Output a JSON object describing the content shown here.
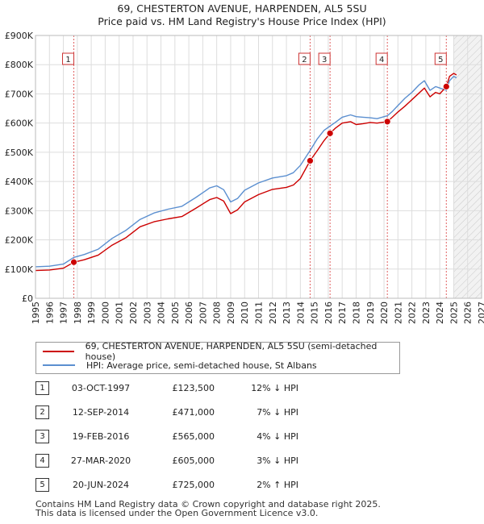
{
  "title_line1": "69, CHESTERTON AVENUE, HARPENDEN, AL5 5SU",
  "title_line2": "Price paid vs. HM Land Registry's House Price Index (HPI)",
  "legend": [
    {
      "label": "69, CHESTERTON AVENUE, HARPENDEN, AL5 5SU (semi-detached house)",
      "color": "#cc0000"
    },
    {
      "label": "HPI: Average price, semi-detached house, St Albans",
      "color": "#5b8fd0"
    }
  ],
  "transactions": [
    {
      "num": "1",
      "date": "03-OCT-1997",
      "price": "£123,500",
      "hpi": "12% ↓ HPI"
    },
    {
      "num": "2",
      "date": "12-SEP-2014",
      "price": "£471,000",
      "hpi": "7% ↓ HPI"
    },
    {
      "num": "3",
      "date": "19-FEB-2016",
      "price": "£565,000",
      "hpi": "4% ↓ HPI"
    },
    {
      "num": "4",
      "date": "27-MAR-2020",
      "price": "£605,000",
      "hpi": "3% ↓ HPI"
    },
    {
      "num": "5",
      "date": "20-JUN-2024",
      "price": "£725,000",
      "hpi": "2% ↑ HPI"
    }
  ],
  "footer_line1": "Contains HM Land Registry data © Crown copyright and database right 2025.",
  "footer_line2": "This data is licensed under the Open Government Licence v3.0.",
  "chart_data": {
    "type": "line",
    "title": "69, CHESTERTON AVENUE, HARPENDEN, AL5 5SU",
    "subtitle": "Price paid vs. HM Land Registry's House Price Index (HPI)",
    "xlim": [
      1995,
      2027
    ],
    "ylim": [
      0,
      900000
    ],
    "x_ticks": [
      1995,
      1996,
      1997,
      1998,
      1999,
      2000,
      2001,
      2002,
      2003,
      2004,
      2005,
      2006,
      2007,
      2008,
      2009,
      2010,
      2011,
      2012,
      2013,
      2014,
      2015,
      2016,
      2017,
      2018,
      2019,
      2020,
      2021,
      2022,
      2023,
      2024,
      2025,
      2026,
      2027
    ],
    "y_ticks": [
      {
        "value": 0,
        "label": "£0"
      },
      {
        "value": 100000,
        "label": "£100K"
      },
      {
        "value": 200000,
        "label": "£200K"
      },
      {
        "value": 300000,
        "label": "£300K"
      },
      {
        "value": 400000,
        "label": "£400K"
      },
      {
        "value": 500000,
        "label": "£500K"
      },
      {
        "value": 600000,
        "label": "£600K"
      },
      {
        "value": 700000,
        "label": "£700K"
      },
      {
        "value": 800000,
        "label": "£800K"
      },
      {
        "value": 900000,
        "label": "£900K"
      }
    ],
    "grid": true,
    "legend_position": "below",
    "shaded_future_from": 2025,
    "series": [
      {
        "name": "69, CHESTERTON AVENUE, HARPENDEN, AL5 5SU (semi-detached house)",
        "color": "#cc0000",
        "x": [
          1995.0,
          1996.0,
          1997.0,
          1997.75,
          1998.5,
          1999.5,
          2000.5,
          2001.5,
          2002.5,
          2003.5,
          2004.5,
          2005.5,
          2006.5,
          2007.5,
          2008.0,
          2008.5,
          2009.0,
          2009.5,
          2010.0,
          2011.0,
          2012.0,
          2013.0,
          2013.5,
          2014.0,
          2014.7,
          2015.2,
          2015.7,
          2016.13,
          2016.5,
          2017.0,
          2017.6,
          2018.0,
          2018.5,
          2019.0,
          2019.5,
          2020.24,
          2020.6,
          2021.0,
          2021.5,
          2022.0,
          2022.5,
          2022.9,
          2023.3,
          2023.7,
          2024.0,
          2024.47,
          2024.7,
          2025.0,
          2025.2
        ],
        "y": [
          95000,
          97000,
          103000,
          123500,
          132000,
          148000,
          182000,
          208000,
          245000,
          262000,
          272000,
          280000,
          308000,
          338000,
          345000,
          333000,
          290000,
          303000,
          330000,
          355000,
          373000,
          380000,
          388000,
          410000,
          471000,
          505000,
          540000,
          565000,
          582000,
          600000,
          605000,
          595000,
          598000,
          602000,
          600000,
          605000,
          620000,
          638000,
          658000,
          680000,
          702000,
          720000,
          690000,
          705000,
          700000,
          725000,
          760000,
          770000,
          765000
        ]
      },
      {
        "name": "HPI: Average price, semi-detached house, St Albans",
        "color": "#5b8fd0",
        "x": [
          1995.0,
          1996.0,
          1997.0,
          1997.75,
          1998.5,
          1999.5,
          2000.5,
          2001.5,
          2002.5,
          2003.5,
          2004.5,
          2005.5,
          2006.5,
          2007.5,
          2008.0,
          2008.5,
          2009.0,
          2009.5,
          2010.0,
          2011.0,
          2012.0,
          2013.0,
          2013.5,
          2014.0,
          2014.7,
          2015.2,
          2015.7,
          2016.13,
          2016.5,
          2017.0,
          2017.6,
          2018.0,
          2018.5,
          2019.0,
          2019.5,
          2020.24,
          2020.6,
          2021.0,
          2021.5,
          2022.0,
          2022.5,
          2022.9,
          2023.3,
          2023.7,
          2024.0,
          2024.47,
          2024.7,
          2025.0,
          2025.2
        ],
        "y": [
          108000,
          110000,
          117000,
          140000,
          150000,
          168000,
          205000,
          233000,
          270000,
          292000,
          305000,
          315000,
          345000,
          378000,
          385000,
          372000,
          330000,
          342000,
          370000,
          395000,
          412000,
          420000,
          430000,
          455000,
          506000,
          545000,
          575000,
          590000,
          602000,
          620000,
          628000,
          622000,
          620000,
          618000,
          615000,
          625000,
          640000,
          660000,
          685000,
          705000,
          730000,
          745000,
          712000,
          725000,
          720000,
          712000,
          745000,
          760000,
          755000
        ]
      }
    ],
    "sales": [
      {
        "num": "1",
        "x": 1997.75,
        "y": 123500
      },
      {
        "num": "2",
        "x": 2014.7,
        "y": 471000
      },
      {
        "num": "3",
        "x": 2016.13,
        "y": 565000
      },
      {
        "num": "4",
        "x": 2020.24,
        "y": 605000
      },
      {
        "num": "5",
        "x": 2024.47,
        "y": 725000
      }
    ]
  }
}
